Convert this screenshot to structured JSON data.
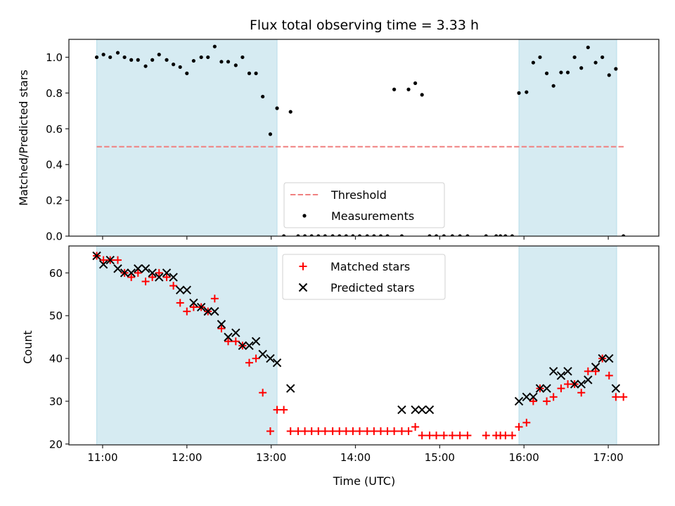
{
  "chart_data": [
    {
      "type": "scatter",
      "title": "Flux total observing time = 3.33 h",
      "xlabel": "",
      "ylabel": "Matched/Predicted stars",
      "xlim": [
        10.6,
        17.6
      ],
      "ylim": [
        0.0,
        1.1
      ],
      "yticks": [
        0.0,
        0.2,
        0.4,
        0.6,
        0.8,
        1.0
      ],
      "ytick_labels": [
        "0.0",
        "0.2",
        "0.4",
        "0.6",
        "0.8",
        "1.0"
      ],
      "xticks": [
        11,
        12,
        13,
        14,
        15,
        16,
        17
      ],
      "grid": false,
      "legend_placement": "lower-center",
      "legend": [
        "Threshold",
        "Measurements"
      ],
      "threshold": {
        "name": "Threshold",
        "value": 0.5,
        "x_range": [
          10.93,
          17.2
        ],
        "color": "#f08080",
        "style": "dashed"
      },
      "shaded_spans": [
        [
          10.93,
          13.07
        ],
        [
          15.94,
          17.1
        ]
      ],
      "shade_color": "#add8e6",
      "series": [
        {
          "name": "Measurements",
          "color": "#000000",
          "x": [
            10.93,
            11.01,
            11.09,
            11.18,
            11.26,
            11.34,
            11.42,
            11.51,
            11.59,
            11.67,
            11.76,
            11.84,
            11.92,
            12.0,
            12.08,
            12.17,
            12.25,
            12.33,
            12.41,
            12.49,
            12.58,
            12.66,
            12.74,
            12.82,
            12.9,
            12.99,
            13.07,
            13.15,
            13.23,
            13.32,
            13.4,
            13.48,
            13.56,
            13.64,
            13.73,
            13.81,
            13.89,
            13.97,
            14.05,
            14.14,
            14.22,
            14.3,
            14.38,
            14.46,
            14.55,
            14.63,
            14.71,
            14.79,
            14.88,
            14.96,
            15.05,
            15.15,
            15.24,
            15.33,
            15.55,
            15.67,
            15.72,
            15.78,
            15.86,
            15.94,
            16.03,
            16.11,
            16.19,
            16.27,
            16.35,
            16.44,
            16.52,
            16.6,
            16.68,
            16.76,
            16.85,
            16.93,
            17.01,
            17.09,
            17.18
          ],
          "y": [
            1.0,
            1.015,
            1.0,
            1.025,
            1.0,
            0.985,
            0.985,
            0.95,
            0.985,
            1.015,
            0.985,
            0.96,
            0.945,
            0.91,
            0.98,
            1.0,
            1.0,
            1.06,
            0.975,
            0.975,
            0.955,
            1.0,
            0.91,
            0.91,
            0.78,
            0.57,
            0.715,
            0.0,
            0.695,
            0.0,
            0.0,
            0.0,
            0.0,
            0.0,
            0.0,
            0.0,
            0.0,
            0.0,
            0.0,
            0.0,
            0.0,
            0.0,
            0.0,
            0.82,
            0.0,
            0.82,
            0.855,
            0.79,
            0.0,
            0.0,
            0.0,
            0.0,
            0.0,
            0.0,
            0.0,
            0.0,
            0.0,
            0.0,
            0.0,
            0.8,
            0.805,
            0.97,
            1.0,
            0.91,
            0.84,
            0.915,
            0.915,
            1.0,
            0.94,
            1.055,
            0.97,
            1.0,
            0.9,
            0.935,
            0.0
          ]
        }
      ]
    },
    {
      "type": "scatter",
      "title": "",
      "xlabel": "Time (UTC)",
      "ylabel": "Count",
      "xlim": [
        10.6,
        17.6
      ],
      "ylim": [
        19.8,
        66.3
      ],
      "yticks": [
        20,
        30,
        40,
        50,
        60
      ],
      "ytick_labels": [
        "20",
        "30",
        "40",
        "50",
        "60"
      ],
      "xticks": [
        11,
        12,
        13,
        14,
        15,
        16,
        17
      ],
      "xtick_labels": [
        "11:00",
        "12:00",
        "13:00",
        "14:00",
        "15:00",
        "16:00",
        "17:00"
      ],
      "grid": false,
      "legend_placement": "upper-center",
      "legend": [
        "Matched stars",
        "Predicted stars"
      ],
      "shaded_spans": [
        [
          10.93,
          13.07
        ],
        [
          15.94,
          17.1
        ]
      ],
      "shade_color": "#add8e6",
      "series": [
        {
          "name": "Matched stars",
          "marker": "+",
          "color": "#ff0000",
          "x": [
            10.93,
            11.01,
            11.09,
            11.18,
            11.26,
            11.34,
            11.42,
            11.51,
            11.59,
            11.67,
            11.76,
            11.84,
            11.92,
            12.0,
            12.08,
            12.17,
            12.25,
            12.33,
            12.41,
            12.49,
            12.58,
            12.66,
            12.74,
            12.82,
            12.9,
            12.99,
            13.07,
            13.15,
            13.23,
            13.32,
            13.4,
            13.48,
            13.56,
            13.64,
            13.73,
            13.81,
            13.89,
            13.97,
            14.05,
            14.14,
            14.22,
            14.3,
            14.38,
            14.46,
            14.55,
            14.63,
            14.71,
            14.79,
            14.88,
            14.96,
            15.05,
            15.15,
            15.24,
            15.33,
            15.55,
            15.67,
            15.72,
            15.78,
            15.86,
            15.94,
            16.03,
            16.11,
            16.19,
            16.27,
            16.35,
            16.44,
            16.52,
            16.6,
            16.68,
            16.76,
            16.85,
            16.93,
            17.01,
            17.09,
            17.18
          ],
          "y": [
            64,
            63,
            63,
            63,
            60,
            59,
            60,
            58,
            59,
            60,
            59,
            57,
            53,
            51,
            52,
            52,
            51,
            54,
            47,
            44,
            44,
            43,
            39,
            40,
            32,
            23,
            28,
            28,
            23,
            23,
            23,
            23,
            23,
            23,
            23,
            23,
            23,
            23,
            23,
            23,
            23,
            23,
            23,
            23,
            23,
            23,
            24,
            22,
            22,
            22,
            22,
            22,
            22,
            22,
            22,
            22,
            22,
            22,
            22,
            24,
            25,
            30,
            33,
            30,
            31,
            33,
            34,
            34,
            32,
            37,
            37,
            40,
            36,
            31,
            31
          ]
        },
        {
          "name": "Predicted stars",
          "marker": "x",
          "color": "#000000",
          "x": [
            10.93,
            11.01,
            11.09,
            11.18,
            11.26,
            11.34,
            11.42,
            11.51,
            11.59,
            11.67,
            11.76,
            11.84,
            11.92,
            12.0,
            12.08,
            12.17,
            12.25,
            12.33,
            12.41,
            12.49,
            12.58,
            12.66,
            12.74,
            12.82,
            12.9,
            12.99,
            13.07,
            13.23,
            14.55,
            14.71,
            14.79,
            14.88,
            15.94,
            16.03,
            16.11,
            16.19,
            16.27,
            16.35,
            16.44,
            16.52,
            16.6,
            16.68,
            16.76,
            16.85,
            16.93,
            17.01,
            17.09
          ],
          "y": [
            64,
            62,
            63,
            61,
            60,
            60,
            61,
            61,
            60,
            59,
            60,
            59,
            56,
            56,
            53,
            52,
            51,
            51,
            48,
            45,
            46,
            43,
            43,
            44,
            41,
            40,
            39,
            33,
            28,
            28,
            28,
            28,
            30,
            31,
            31,
            33,
            33,
            37,
            36,
            37,
            34,
            34,
            35,
            38,
            40,
            40,
            33
          ]
        }
      ]
    }
  ]
}
